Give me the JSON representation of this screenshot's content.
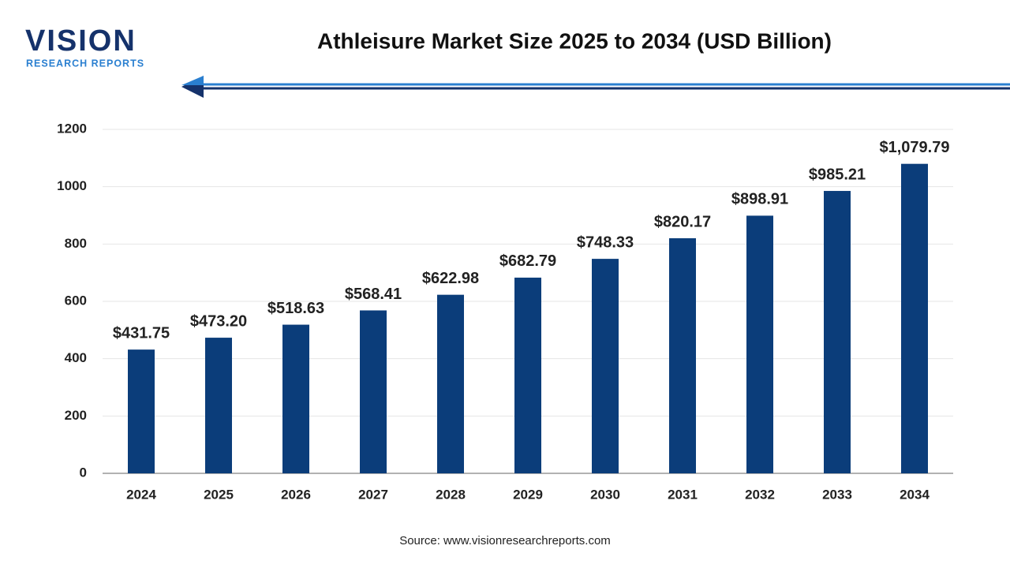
{
  "logo": {
    "name": "VISION",
    "tagline": "RESEARCH REPORTS"
  },
  "chart_data": {
    "type": "bar",
    "title": "Athleisure Market Size 2025 to 2034 (USD Billion)",
    "categories": [
      "2024",
      "2025",
      "2026",
      "2027",
      "2028",
      "2029",
      "2030",
      "2031",
      "2032",
      "2033",
      "2034"
    ],
    "values": [
      431.75,
      473.2,
      518.63,
      568.41,
      622.98,
      682.79,
      748.33,
      820.17,
      898.91,
      985.21,
      1079.79
    ],
    "value_labels": [
      "$431.75",
      "$473.20",
      "$518.63",
      "$568.41",
      "$622.98",
      "$682.79",
      "$748.33",
      "$820.17",
      "$898.91",
      "$985.21",
      "$1,079.79"
    ],
    "color": "#0b3d7a",
    "ylim": [
      0,
      1200
    ],
    "yticks": [
      0,
      200,
      400,
      600,
      800,
      1000,
      1200
    ],
    "grid": true,
    "source": "Source: www.visionresearchreports.com"
  }
}
